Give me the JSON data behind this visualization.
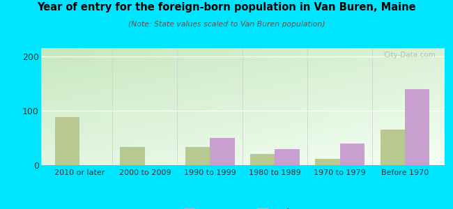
{
  "title": "Year of entry for the foreign-born population in Van Buren, Maine",
  "subtitle": "(Note: State values scaled to Van Buren population)",
  "categories": [
    "2010 or later",
    "2000 to 2009",
    "1990 to 1999",
    "1980 to 1989",
    "1970 to 1979",
    "Before 1970"
  ],
  "van_buren_values": [
    0,
    0,
    50,
    30,
    40,
    140
  ],
  "maine_values": [
    88,
    33,
    33,
    20,
    12,
    65
  ],
  "van_buren_color": "#c8a0d0",
  "maine_color": "#b8c890",
  "background_color": "#00e5ff",
  "ylim": [
    0,
    215
  ],
  "yticks": [
    0,
    100,
    200
  ],
  "bar_width": 0.38,
  "watermark": "City-Data.com"
}
